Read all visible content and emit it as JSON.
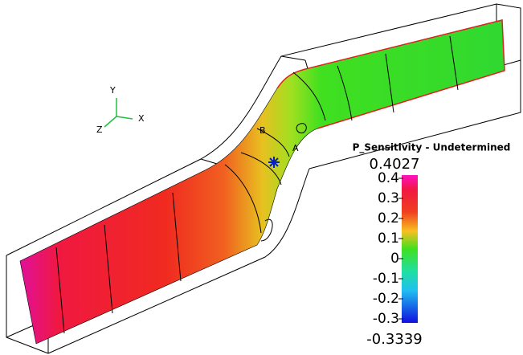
{
  "triad": {
    "x": "X",
    "y": "Y",
    "z": "Z"
  },
  "point_labels": {
    "a": "A",
    "b": "B"
  },
  "legend": {
    "title": "P_Sensitivity - Undetermined",
    "max": "0.4027",
    "min": "-0.3339",
    "ticks": [
      "0.4",
      "0.3",
      "0.2",
      "0.1",
      "0",
      "-0.1",
      "-0.2",
      "-0.3"
    ]
  }
}
